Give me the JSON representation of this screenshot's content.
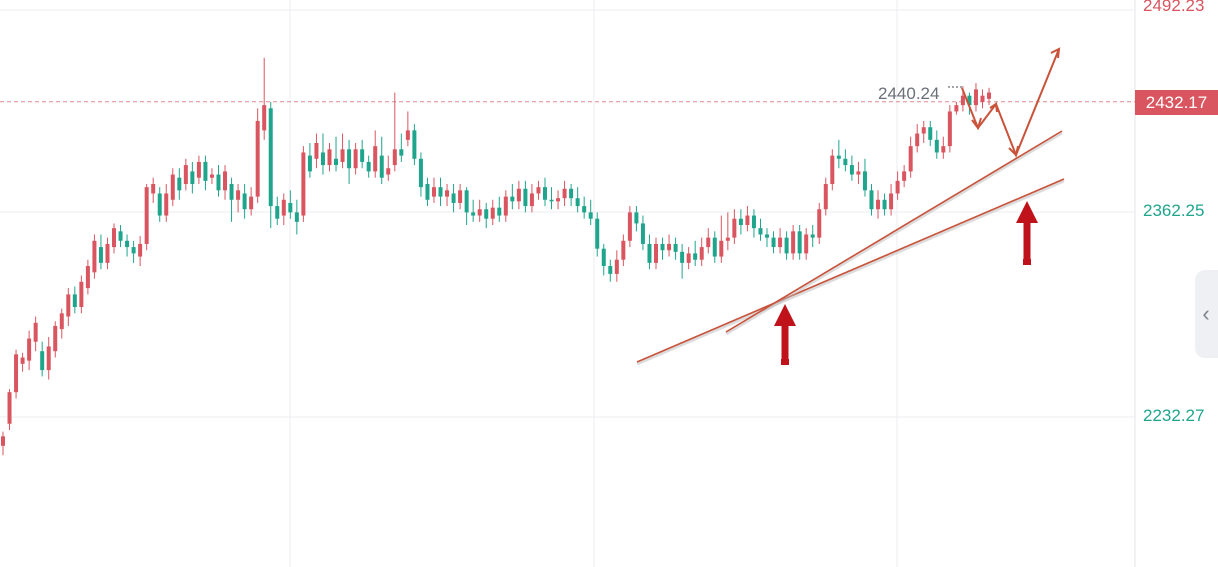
{
  "colors": {
    "up": "#d9555f",
    "down": "#1fa58c",
    "grid": "#eceef2",
    "trendline": "#c9523a",
    "arrow": "#c0121b",
    "price_line": "#e08a8f"
  },
  "axis": {
    "labels": [
      {
        "value": "2492.23",
        "color": "#d9555f"
      },
      {
        "value": "2362.25",
        "color": "#1fa58c"
      },
      {
        "value": "2232.27",
        "color": "#1fa58c"
      }
    ]
  },
  "current_price": {
    "value": "2432.17",
    "color": "#d9555f"
  },
  "high_marker": {
    "value": "2440.24"
  },
  "panel_toggle": {
    "icon": "chevron-left-icon",
    "glyph": "‹"
  },
  "chart_data": {
    "type": "candlestick",
    "ylim": [
      2170,
      2510
    ],
    "candles": [
      [
        2214,
        2220,
        2208,
        2223
      ],
      [
        2228,
        2248,
        2224,
        2250
      ],
      [
        2248,
        2272,
        2244,
        2275
      ],
      [
        2266,
        2270,
        2261,
        2273
      ],
      [
        2268,
        2282,
        2262,
        2287
      ],
      [
        2280,
        2292,
        2274,
        2296
      ],
      [
        2274,
        2262,
        2258,
        2280
      ],
      [
        2262,
        2277,
        2256,
        2283
      ],
      [
        2274,
        2290,
        2270,
        2293
      ],
      [
        2288,
        2298,
        2282,
        2301
      ],
      [
        2296,
        2310,
        2290,
        2314
      ],
      [
        2310,
        2302,
        2298,
        2315
      ],
      [
        2302,
        2318,
        2298,
        2322
      ],
      [
        2314,
        2328,
        2310,
        2332
      ],
      [
        2324,
        2344,
        2320,
        2348
      ],
      [
        2340,
        2330,
        2326,
        2348
      ],
      [
        2330,
        2342,
        2326,
        2346
      ],
      [
        2340,
        2352,
        2336,
        2355
      ],
      [
        2350,
        2344,
        2340,
        2354
      ],
      [
        2344,
        2340,
        2334,
        2348
      ],
      [
        2340,
        2336,
        2330,
        2344
      ],
      [
        2334,
        2342,
        2328,
        2347
      ],
      [
        2342,
        2378,
        2338,
        2380
      ],
      [
        2374,
        2380,
        2368,
        2384
      ],
      [
        2374,
        2360,
        2356,
        2378
      ],
      [
        2360,
        2374,
        2356,
        2380
      ],
      [
        2370,
        2386,
        2366,
        2390
      ],
      [
        2384,
        2376,
        2370,
        2390
      ],
      [
        2380,
        2392,
        2376,
        2396
      ],
      [
        2388,
        2380,
        2374,
        2394
      ],
      [
        2384,
        2394,
        2380,
        2398
      ],
      [
        2394,
        2382,
        2376,
        2398
      ],
      [
        2384,
        2386,
        2380,
        2390
      ],
      [
        2386,
        2376,
        2372,
        2392
      ],
      [
        2376,
        2388,
        2370,
        2392
      ],
      [
        2380,
        2370,
        2356,
        2384
      ],
      [
        2370,
        2376,
        2362,
        2380
      ],
      [
        2374,
        2364,
        2358,
        2380
      ],
      [
        2364,
        2372,
        2360,
        2378
      ],
      [
        2372,
        2420,
        2368,
        2428
      ],
      [
        2414,
        2430,
        2408,
        2460
      ],
      [
        2428,
        2366,
        2352,
        2432
      ],
      [
        2366,
        2358,
        2354,
        2372
      ],
      [
        2360,
        2370,
        2354,
        2374
      ],
      [
        2368,
        2362,
        2358,
        2376
      ],
      [
        2362,
        2356,
        2348,
        2370
      ],
      [
        2360,
        2400,
        2356,
        2404
      ],
      [
        2398,
        2388,
        2384,
        2406
      ],
      [
        2396,
        2406,
        2390,
        2412
      ],
      [
        2400,
        2392,
        2386,
        2412
      ],
      [
        2392,
        2402,
        2388,
        2406
      ],
      [
        2396,
        2392,
        2388,
        2410
      ],
      [
        2394,
        2402,
        2390,
        2412
      ],
      [
        2402,
        2390,
        2380,
        2408
      ],
      [
        2390,
        2402,
        2386,
        2406
      ],
      [
        2402,
        2394,
        2390,
        2408
      ],
      [
        2394,
        2388,
        2384,
        2398
      ],
      [
        2388,
        2404,
        2384,
        2414
      ],
      [
        2398,
        2384,
        2380,
        2410
      ],
      [
        2386,
        2390,
        2382,
        2398
      ],
      [
        2392,
        2402,
        2388,
        2438
      ],
      [
        2402,
        2398,
        2394,
        2412
      ],
      [
        2408,
        2414,
        2404,
        2426
      ],
      [
        2414,
        2396,
        2392,
        2418
      ],
      [
        2396,
        2378,
        2372,
        2400
      ],
      [
        2380,
        2370,
        2366,
        2384
      ],
      [
        2372,
        2378,
        2368,
        2384
      ],
      [
        2378,
        2372,
        2366,
        2384
      ],
      [
        2372,
        2376,
        2366,
        2380
      ],
      [
        2374,
        2368,
        2362,
        2380
      ],
      [
        2368,
        2376,
        2364,
        2380
      ],
      [
        2376,
        2362,
        2354,
        2378
      ],
      [
        2362,
        2360,
        2356,
        2370
      ],
      [
        2360,
        2364,
        2356,
        2370
      ],
      [
        2364,
        2358,
        2352,
        2368
      ],
      [
        2358,
        2365,
        2354,
        2370
      ],
      [
        2365,
        2360,
        2356,
        2372
      ],
      [
        2360,
        2372,
        2356,
        2376
      ],
      [
        2372,
        2369,
        2364,
        2380
      ],
      [
        2369,
        2377,
        2364,
        2382
      ],
      [
        2377,
        2366,
        2362,
        2382
      ],
      [
        2366,
        2374,
        2362,
        2380
      ],
      [
        2374,
        2378,
        2370,
        2382
      ],
      [
        2378,
        2370,
        2366,
        2384
      ],
      [
        2370,
        2369,
        2364,
        2378
      ],
      [
        2369,
        2371,
        2364,
        2376
      ],
      [
        2371,
        2377,
        2366,
        2382
      ],
      [
        2377,
        2371,
        2366,
        2380
      ],
      [
        2371,
        2366,
        2362,
        2378
      ],
      [
        2366,
        2362,
        2358,
        2372
      ],
      [
        2362,
        2358,
        2354,
        2370
      ],
      [
        2358,
        2339,
        2334,
        2362
      ],
      [
        2339,
        2328,
        2322,
        2342
      ],
      [
        2328,
        2323,
        2318,
        2332
      ],
      [
        2323,
        2332,
        2318,
        2338
      ],
      [
        2332,
        2344,
        2328,
        2348
      ],
      [
        2344,
        2362,
        2340,
        2366
      ],
      [
        2362,
        2355,
        2350,
        2366
      ],
      [
        2355,
        2342,
        2338,
        2360
      ],
      [
        2342,
        2330,
        2326,
        2348
      ],
      [
        2330,
        2342,
        2326,
        2346
      ],
      [
        2342,
        2338,
        2332,
        2346
      ],
      [
        2338,
        2342,
        2334,
        2348
      ],
      [
        2342,
        2337,
        2332,
        2346
      ],
      [
        2337,
        2330,
        2320,
        2342
      ],
      [
        2330,
        2336,
        2326,
        2340
      ],
      [
        2336,
        2332,
        2328,
        2344
      ],
      [
        2332,
        2340,
        2328,
        2346
      ],
      [
        2340,
        2346,
        2336,
        2352
      ],
      [
        2346,
        2334,
        2330,
        2350
      ],
      [
        2334,
        2344,
        2330,
        2360
      ],
      [
        2344,
        2346,
        2338,
        2362
      ],
      [
        2346,
        2358,
        2342,
        2364
      ],
      [
        2358,
        2354,
        2348,
        2364
      ],
      [
        2354,
        2360,
        2350,
        2366
      ],
      [
        2360,
        2352,
        2346,
        2364
      ],
      [
        2352,
        2348,
        2344,
        2358
      ],
      [
        2348,
        2346,
        2340,
        2352
      ],
      [
        2346,
        2340,
        2336,
        2350
      ],
      [
        2340,
        2346,
        2336,
        2352
      ],
      [
        2346,
        2336,
        2332,
        2350
      ],
      [
        2336,
        2350,
        2332,
        2354
      ],
      [
        2350,
        2336,
        2332,
        2354
      ],
      [
        2336,
        2348,
        2332,
        2352
      ],
      [
        2348,
        2346,
        2340,
        2354
      ],
      [
        2346,
        2364,
        2342,
        2368
      ],
      [
        2364,
        2380,
        2360,
        2384
      ],
      [
        2380,
        2398,
        2376,
        2402
      ],
      [
        2398,
        2396,
        2390,
        2408
      ],
      [
        2396,
        2392,
        2388,
        2402
      ],
      [
        2392,
        2386,
        2382,
        2398
      ],
      [
        2386,
        2388,
        2380,
        2394
      ],
      [
        2388,
        2376,
        2372,
        2396
      ],
      [
        2376,
        2364,
        2360,
        2380
      ],
      [
        2364,
        2370,
        2358,
        2376
      ],
      [
        2370,
        2364,
        2360,
        2374
      ],
      [
        2364,
        2374,
        2360,
        2380
      ],
      [
        2374,
        2382,
        2370,
        2388
      ],
      [
        2382,
        2388,
        2378,
        2392
      ],
      [
        2388,
        2404,
        2384,
        2410
      ],
      [
        2404,
        2412,
        2400,
        2418
      ],
      [
        2412,
        2416,
        2406,
        2420
      ],
      [
        2416,
        2408,
        2404,
        2420
      ],
      [
        2408,
        2400,
        2396,
        2414
      ],
      [
        2400,
        2404,
        2396,
        2410
      ],
      [
        2404,
        2426,
        2400,
        2430
      ],
      [
        2426,
        2430,
        2424,
        2432
      ],
      [
        2430,
        2436,
        2426,
        2442
      ],
      [
        2436,
        2430,
        2424,
        2438
      ],
      [
        2430,
        2440,
        2426,
        2444
      ],
      [
        2432,
        2436,
        2428,
        2440
      ],
      [
        2434,
        2438,
        2430,
        2441
      ]
    ]
  }
}
